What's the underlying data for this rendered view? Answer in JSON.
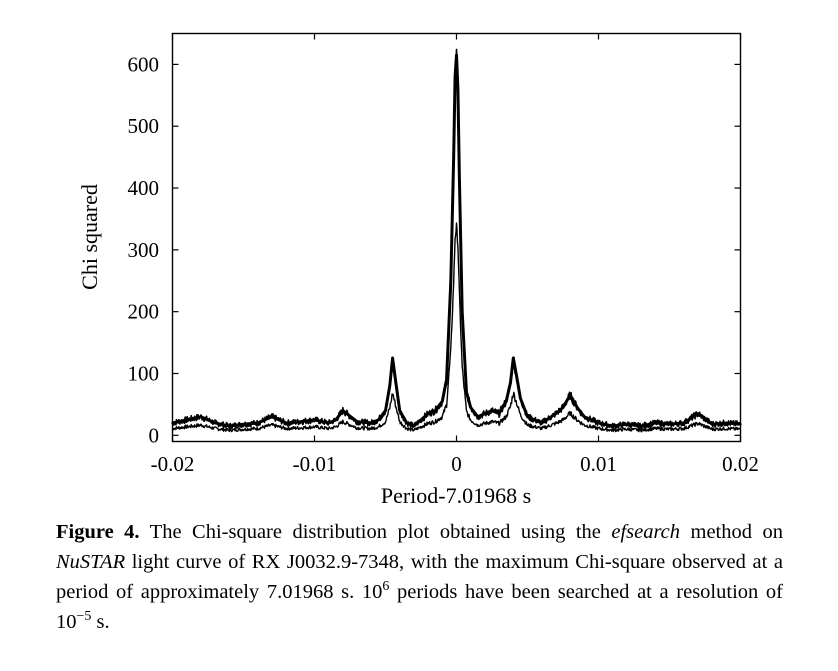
{
  "chart_data": {
    "type": "line",
    "title": "",
    "xlabel": "Period-7.01968 s",
    "ylabel": "Chi squared",
    "xlim": [
      -0.02,
      0.02
    ],
    "ylim": [
      -10,
      650
    ],
    "x_ticks": [
      -0.02,
      -0.01,
      0,
      0.01,
      0.02
    ],
    "x_tick_labels": [
      "-0.02",
      "-0.01",
      "0",
      "0.01",
      "0.02"
    ],
    "y_ticks": [
      0,
      100,
      200,
      300,
      400,
      500,
      600
    ],
    "y_tick_labels": [
      "0",
      "100",
      "200",
      "300",
      "400",
      "500",
      "600"
    ],
    "grid": false,
    "legend": "none",
    "line_color": "#000000",
    "series": [
      {
        "x": [
          -0.02,
          -0.019,
          -0.018,
          -0.017,
          -0.016,
          -0.015,
          -0.014,
          -0.013,
          -0.012,
          -0.011,
          -0.01,
          -0.009,
          -0.0085,
          -0.008,
          -0.007,
          -0.006,
          -0.0055,
          -0.005,
          -0.0047,
          -0.0045,
          -0.0043,
          -0.004,
          -0.0035,
          -0.003,
          -0.0025,
          -0.002,
          -0.0015,
          -0.001,
          -0.0007,
          -0.0004,
          -0.0002,
          -0.0001,
          0.0,
          0.0001,
          0.0002,
          0.0004,
          0.0007,
          0.001,
          0.0015,
          0.002,
          0.0025,
          0.003,
          0.0035,
          0.0038,
          0.004,
          0.0042,
          0.0045,
          0.005,
          0.006,
          0.007,
          0.0075,
          0.008,
          0.0085,
          0.009,
          0.01,
          0.011,
          0.012,
          0.013,
          0.014,
          0.015,
          0.016,
          0.017,
          0.018,
          0.019,
          0.02
        ],
        "values": [
          20,
          25,
          30,
          20,
          15,
          18,
          20,
          30,
          20,
          22,
          25,
          20,
          25,
          40,
          22,
          20,
          25,
          40,
          80,
          125,
          90,
          40,
          20,
          15,
          25,
          35,
          40,
          55,
          90,
          250,
          450,
          580,
          615,
          560,
          420,
          200,
          70,
          45,
          30,
          35,
          40,
          35,
          55,
          85,
          125,
          100,
          60,
          30,
          20,
          35,
          45,
          65,
          45,
          30,
          20,
          15,
          18,
          15,
          20,
          18,
          20,
          35,
          18,
          20,
          18
        ]
      }
    ]
  },
  "caption": {
    "label": "Figure 4.",
    "text_1": " The Chi-square distribution plot obtained using the ",
    "method": "efsearch",
    "text_2": " method on ",
    "instrument": "NuSTAR",
    "text_3": " light curve of RX J0032.9-7348, with the maximum Chi-square observed at a period of approximately 7.01968 s. 10",
    "exp_1": "6",
    "text_4": " periods have been searched at a resolution of 10",
    "exp_2": "−5",
    "text_5": " s."
  }
}
